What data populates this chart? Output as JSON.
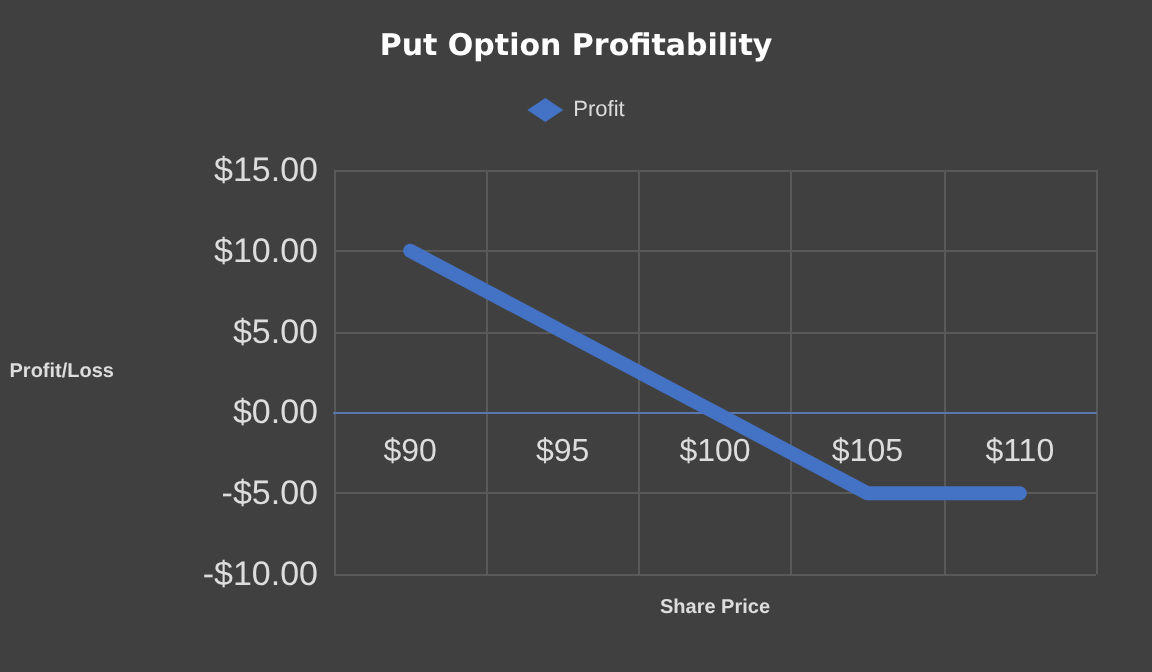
{
  "chart_data": {
    "type": "line",
    "title": "Put Option Profitability",
    "xlabel": "Share Price",
    "ylabel": "Profit/Loss",
    "categories": [
      "$90",
      "$95",
      "$100",
      "$105",
      "$110"
    ],
    "series": [
      {
        "name": "Profit",
        "color": "#4472c4",
        "values": [
          10,
          5,
          0,
          -5,
          -5
        ]
      }
    ],
    "ylim": [
      -10,
      15
    ],
    "yticks": [
      {
        "value": -10,
        "label": "-$10.00"
      },
      {
        "value": -5,
        "label": "-$5.00"
      },
      {
        "value": 0,
        "label": "$0.00"
      },
      {
        "value": 5,
        "label": "$5.00"
      },
      {
        "value": 10,
        "label": "$10.00"
      },
      {
        "value": 15,
        "label": "$15.00"
      }
    ],
    "grid": true,
    "legend": "top",
    "line_style": "solid"
  }
}
